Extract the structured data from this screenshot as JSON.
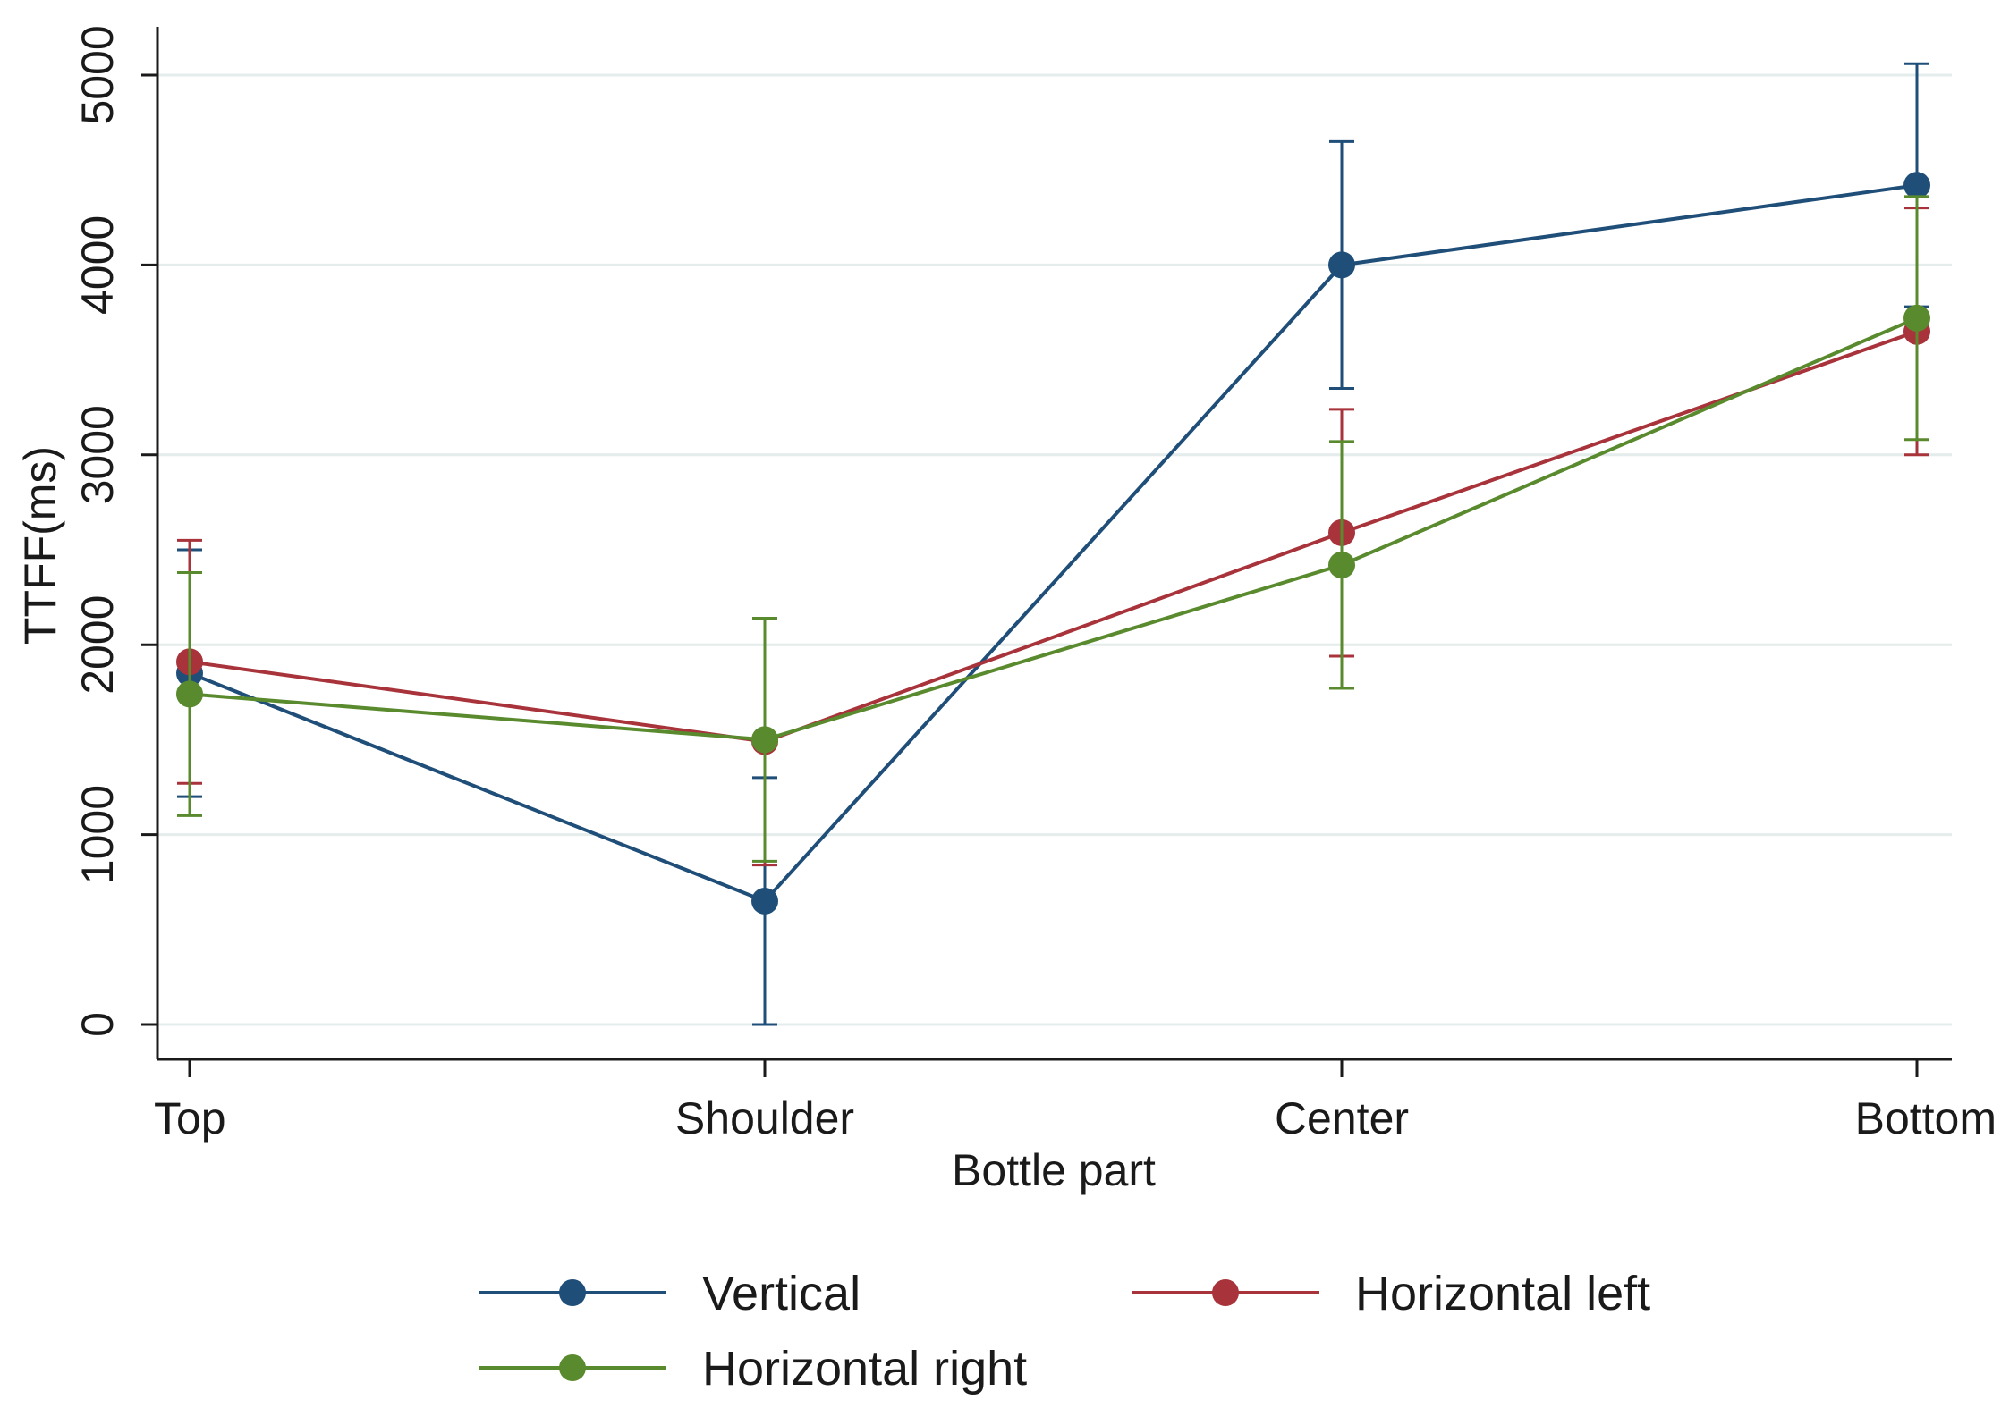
{
  "chart_data": {
    "type": "line",
    "title": "",
    "xlabel": "Bottle part",
    "ylabel": "TTFF(ms)",
    "categories": [
      "Top",
      "Shoulder",
      "Center",
      "Bottom"
    ],
    "ylim": [
      0,
      5000
    ],
    "yticks": [
      0,
      1000,
      2000,
      3000,
      4000,
      5000
    ],
    "ytick_labels": [
      "0",
      "1000",
      "2000",
      "3000",
      "4000",
      "5000"
    ],
    "grid": true,
    "legend_position": "bottom",
    "series": [
      {
        "name": "Vertical",
        "color": "#1f4e79",
        "values": [
          1850,
          650,
          4000,
          4420
        ],
        "error_low": [
          1200,
          0,
          3350,
          3780
        ],
        "error_high": [
          2500,
          1300,
          4650,
          5060
        ]
      },
      {
        "name": "Horizontal left",
        "color": "#a8333a",
        "values": [
          1910,
          1490,
          2590,
          3650
        ],
        "error_low": [
          1270,
          840,
          1940,
          3000
        ],
        "error_high": [
          2550,
          2140,
          3240,
          4300
        ]
      },
      {
        "name": "Horizontal right",
        "color": "#5a8a2e",
        "values": [
          1740,
          1500,
          2420,
          3720
        ],
        "error_low": [
          1100,
          860,
          1770,
          3080
        ],
        "error_high": [
          2380,
          2140,
          3070,
          4360
        ]
      }
    ]
  }
}
